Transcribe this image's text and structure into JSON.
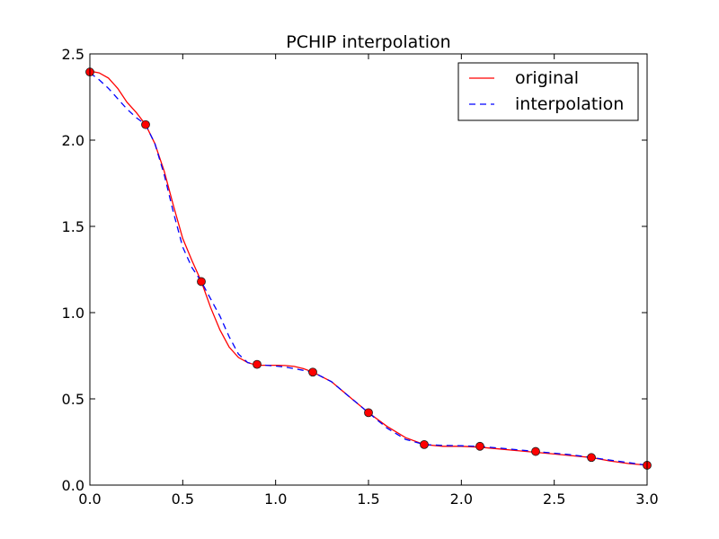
{
  "chart_data": {
    "type": "line",
    "title": "PCHIP interpolation",
    "xlabel": "",
    "ylabel": "",
    "xlim": [
      0.0,
      3.0
    ],
    "ylim": [
      0.0,
      2.5
    ],
    "x_ticks": [
      "0.0",
      "0.5",
      "1.0",
      "1.5",
      "2.0",
      "2.5",
      "3.0"
    ],
    "y_ticks": [
      "0.0",
      "0.5",
      "1.0",
      "1.5",
      "2.0",
      "2.5"
    ],
    "grid": false,
    "legend_position": "top-right",
    "series": [
      {
        "name": "original",
        "style": "solid",
        "color": "#ff0000",
        "x": [
          0.0,
          0.05,
          0.1,
          0.15,
          0.2,
          0.25,
          0.3,
          0.35,
          0.4,
          0.45,
          0.5,
          0.55,
          0.6,
          0.65,
          0.7,
          0.75,
          0.8,
          0.85,
          0.9,
          0.95,
          1.0,
          1.05,
          1.1,
          1.15,
          1.2,
          1.3,
          1.4,
          1.5,
          1.6,
          1.7,
          1.8,
          1.9,
          2.0,
          2.1,
          2.2,
          2.3,
          2.4,
          2.5,
          2.6,
          2.7,
          2.8,
          2.9,
          3.0
        ],
        "y": [
          2.4,
          2.39,
          2.36,
          2.3,
          2.22,
          2.16,
          2.09,
          1.98,
          1.82,
          1.62,
          1.43,
          1.3,
          1.18,
          1.03,
          0.9,
          0.8,
          0.74,
          0.71,
          0.695,
          0.695,
          0.695,
          0.693,
          0.688,
          0.675,
          0.655,
          0.6,
          0.51,
          0.42,
          0.34,
          0.275,
          0.235,
          0.225,
          0.225,
          0.22,
          0.21,
          0.2,
          0.19,
          0.18,
          0.17,
          0.16,
          0.14,
          0.125,
          0.115
        ]
      },
      {
        "name": "interpolation",
        "style": "dashed",
        "color": "#0000ff",
        "x": [
          0.0,
          0.05,
          0.1,
          0.15,
          0.2,
          0.25,
          0.3,
          0.35,
          0.4,
          0.45,
          0.5,
          0.55,
          0.6,
          0.65,
          0.7,
          0.75,
          0.8,
          0.85,
          0.9,
          0.95,
          1.0,
          1.05,
          1.1,
          1.15,
          1.2,
          1.3,
          1.4,
          1.5,
          1.6,
          1.7,
          1.8,
          1.9,
          2.0,
          2.1,
          2.2,
          2.3,
          2.4,
          2.5,
          2.6,
          2.7,
          2.8,
          2.9,
          3.0
        ],
        "y": [
          2.39,
          2.35,
          2.3,
          2.24,
          2.18,
          2.13,
          2.09,
          1.98,
          1.8,
          1.58,
          1.38,
          1.26,
          1.18,
          1.08,
          0.98,
          0.86,
          0.76,
          0.71,
          0.7,
          0.695,
          0.69,
          0.685,
          0.675,
          0.665,
          0.655,
          0.6,
          0.51,
          0.42,
          0.33,
          0.265,
          0.235,
          0.23,
          0.228,
          0.224,
          0.215,
          0.205,
          0.195,
          0.185,
          0.175,
          0.16,
          0.145,
          0.13,
          0.115
        ]
      },
      {
        "name": "",
        "style": "markers",
        "color": "#ff0000",
        "x": [
          0.0,
          0.3,
          0.6,
          0.9,
          1.2,
          1.5,
          1.8,
          2.1,
          2.4,
          2.7,
          3.0
        ],
        "y": [
          2.395,
          2.09,
          1.18,
          0.7,
          0.655,
          0.42,
          0.235,
          0.225,
          0.195,
          0.16,
          0.115
        ]
      }
    ]
  }
}
